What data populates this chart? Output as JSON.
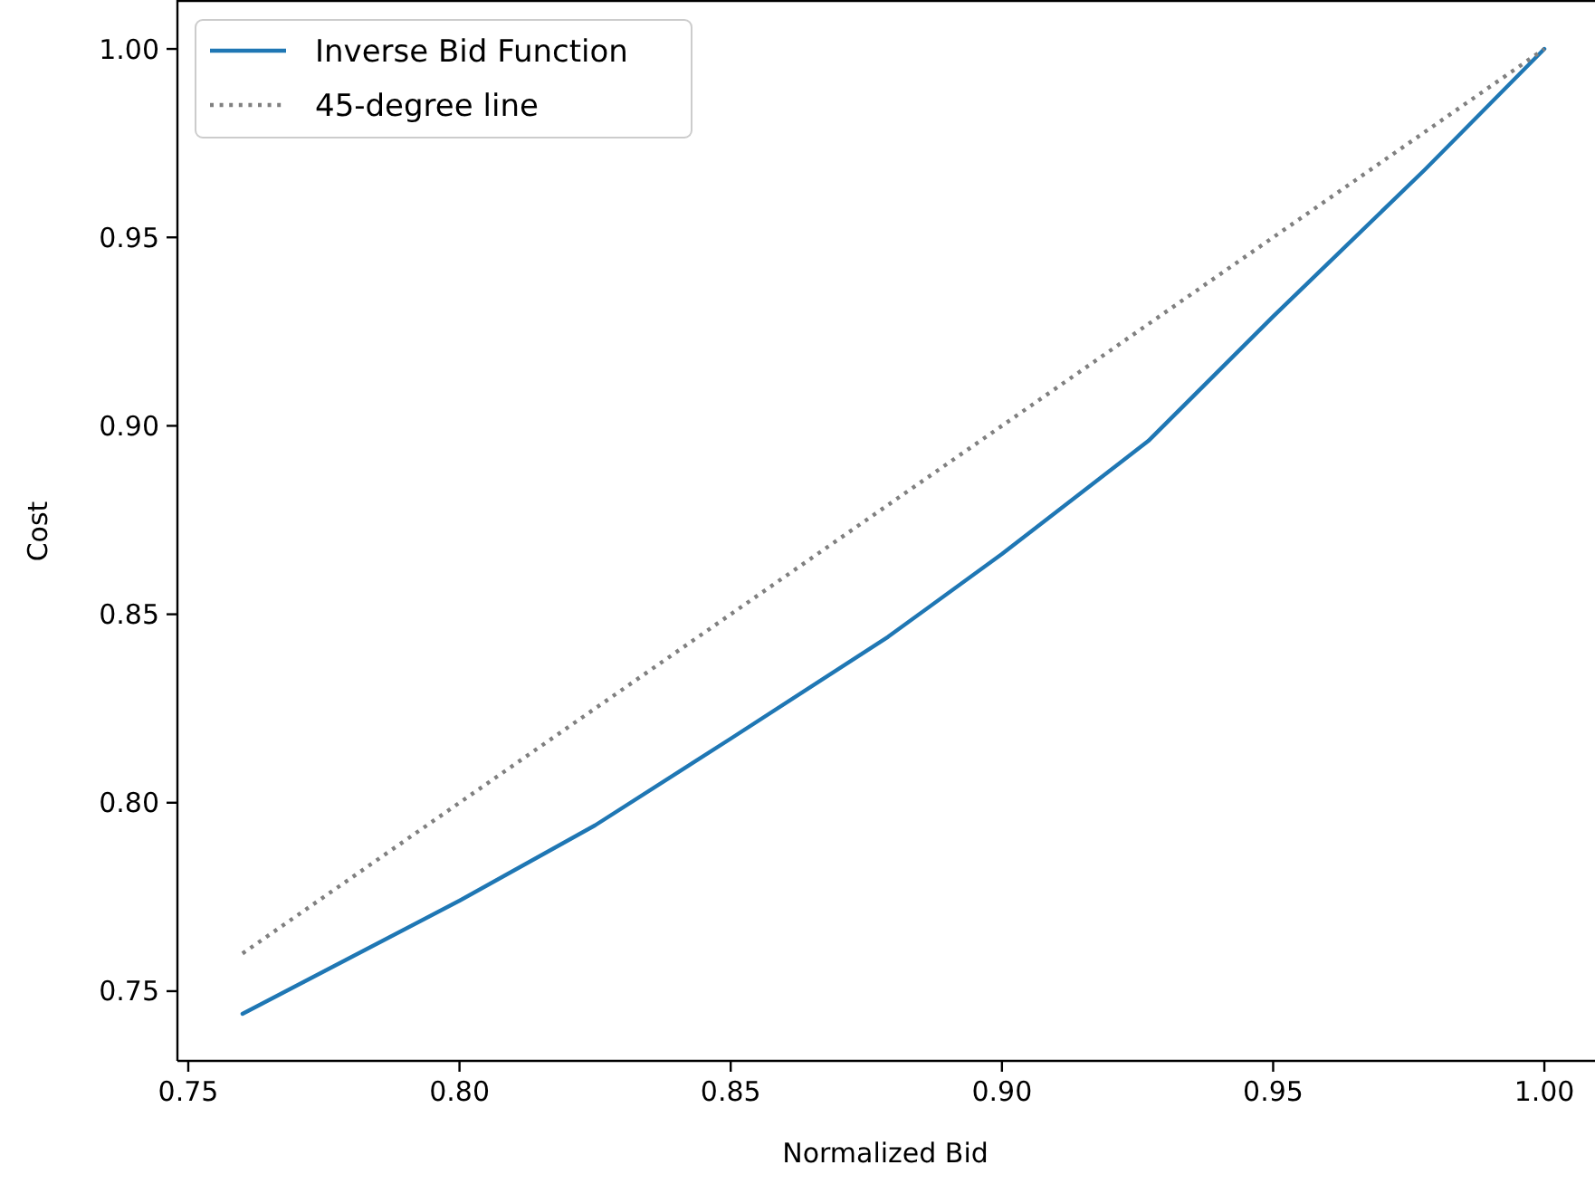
{
  "chart_data": {
    "type": "line",
    "xlabel": "Normalized Bid",
    "ylabel": "Cost",
    "xlim": [
      0.748,
      1.009
    ],
    "ylim": [
      0.7315,
      1.0125
    ],
    "xticks": [
      {
        "value": 0.75,
        "label": "0.75"
      },
      {
        "value": 0.8,
        "label": "0.80"
      },
      {
        "value": 0.85,
        "label": "0.85"
      },
      {
        "value": 0.9,
        "label": "0.90"
      },
      {
        "value": 0.95,
        "label": "0.95"
      },
      {
        "value": 1,
        "label": "1.00"
      }
    ],
    "yticks": [
      {
        "value": 0.75,
        "label": "0.75"
      },
      {
        "value": 0.8,
        "label": "0.80"
      },
      {
        "value": 0.85,
        "label": "0.85"
      },
      {
        "value": 0.9,
        "label": "0.90"
      },
      {
        "value": 0.95,
        "label": "0.95"
      },
      {
        "value": 1,
        "label": "1.00"
      }
    ],
    "grid": false,
    "legend": "top left",
    "marker": "none",
    "series": [
      {
        "name": "Inverse Bid Function",
        "color": "#1f77b4",
        "line_style": "solid",
        "x": [
          0.76,
          0.78,
          0.8,
          0.825,
          0.85,
          0.879,
          0.9,
          0.927,
          0.95,
          0.978,
          1.0
        ],
        "values": [
          0.744,
          0.759,
          0.774,
          0.794,
          0.817,
          0.844,
          0.866,
          0.896,
          0.929,
          0.968,
          1.0
        ]
      },
      {
        "name": "45-degree line",
        "color": "#808080",
        "line_style": "dotted",
        "x": [
          0.76,
          1.0
        ],
        "values": [
          0.76,
          1.0
        ]
      }
    ]
  }
}
